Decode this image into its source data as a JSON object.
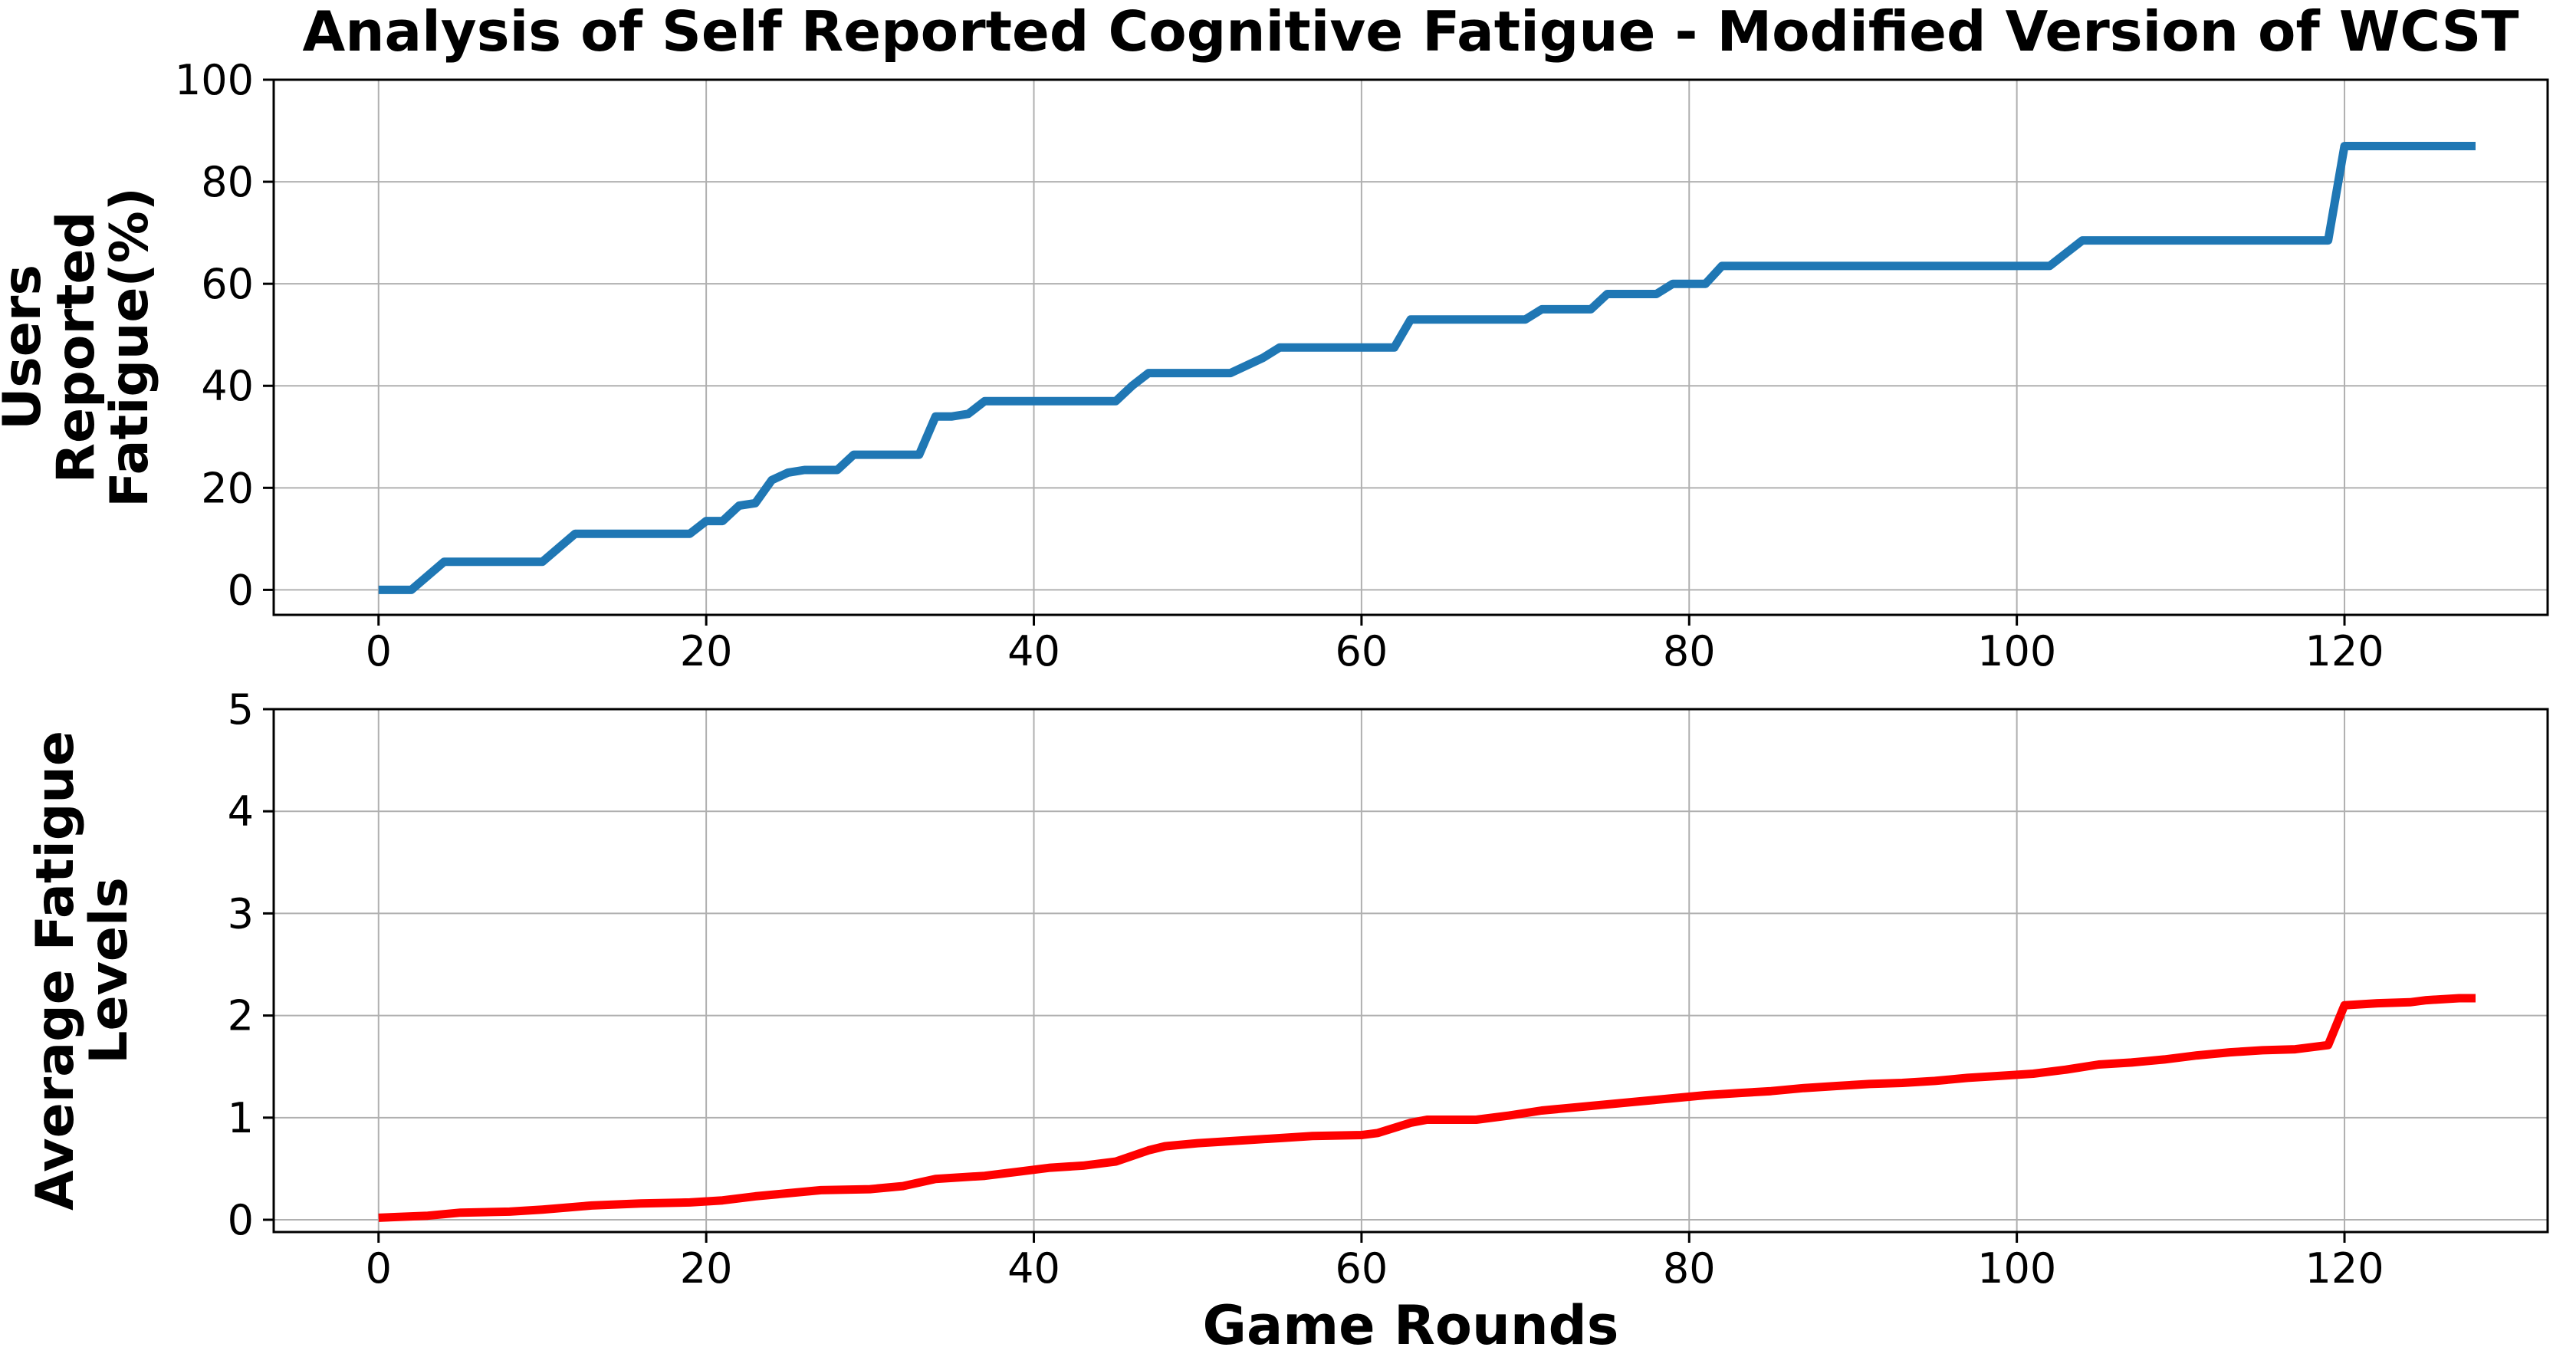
{
  "figure": {
    "title": "Analysis of Self Reported Cognitive Fatigue - Modified Version of WCST",
    "xlabel": "Game Rounds",
    "background": "#ffffff"
  },
  "styles": {
    "grid_color": "#b0b0b0",
    "spine_color": "#000000",
    "text_color": "#000000",
    "blue": "#1f77b4",
    "red": "#ff0000"
  },
  "chart_data": [
    {
      "type": "line",
      "name": "users-reported-fatigue",
      "title": "Analysis of Self Reported Cognitive Fatigue - Modified Version of WCST",
      "ylabel": "Users Reported Fatigue(%)",
      "ylabel_lines": [
        "Users",
        "Reported",
        "Fatigue(%)"
      ],
      "xlabel": "",
      "color": "#1f77b4",
      "line_width": 11,
      "grid": true,
      "legend": "none",
      "xlim": [
        -6.4,
        132.4
      ],
      "ylim": [
        -4.9,
        100
      ],
      "xticks": [
        0,
        20,
        40,
        60,
        80,
        100,
        120
      ],
      "yticks": [
        0,
        20,
        40,
        60,
        80,
        100
      ],
      "points": [
        [
          0,
          0
        ],
        [
          2,
          0
        ],
        [
          4,
          5.5
        ],
        [
          10,
          5.5
        ],
        [
          12,
          11
        ],
        [
          19,
          11
        ],
        [
          20,
          13.5
        ],
        [
          21,
          13.5
        ],
        [
          22,
          16.5
        ],
        [
          23,
          17
        ],
        [
          24,
          21.5
        ],
        [
          25,
          23
        ],
        [
          26,
          23.5
        ],
        [
          28,
          23.5
        ],
        [
          29,
          26.5
        ],
        [
          33,
          26.5
        ],
        [
          34,
          34
        ],
        [
          35,
          34
        ],
        [
          36,
          34.5
        ],
        [
          37,
          37
        ],
        [
          45,
          37
        ],
        [
          46,
          40
        ],
        [
          47,
          42.5
        ],
        [
          52,
          42.5
        ],
        [
          53,
          44
        ],
        [
          54,
          45.5
        ],
        [
          55,
          47.5
        ],
        [
          62,
          47.5
        ],
        [
          63,
          53
        ],
        [
          70,
          53
        ],
        [
          71,
          55
        ],
        [
          74,
          55
        ],
        [
          75,
          58
        ],
        [
          78,
          58
        ],
        [
          79,
          60
        ],
        [
          81,
          60
        ],
        [
          82,
          63.5
        ],
        [
          102,
          63.5
        ],
        [
          103,
          66
        ],
        [
          104,
          68.5
        ],
        [
          119,
          68.5
        ],
        [
          120,
          87
        ],
        [
          128,
          87
        ]
      ]
    },
    {
      "type": "line",
      "name": "average-fatigue-levels",
      "title": "",
      "ylabel": "Average Fatigue Levels",
      "ylabel_lines": [
        "Average Fatigue",
        "Levels"
      ],
      "xlabel": "Game Rounds",
      "color": "#ff0000",
      "line_width": 11,
      "grid": true,
      "legend": "none",
      "xlim": [
        -6.4,
        132.4
      ],
      "ylim": [
        -0.12,
        5
      ],
      "xticks": [
        0,
        20,
        40,
        60,
        80,
        100,
        120
      ],
      "yticks": [
        0,
        1,
        2,
        3,
        4,
        5
      ],
      "points": [
        [
          0,
          0.02
        ],
        [
          3,
          0.04
        ],
        [
          5,
          0.07
        ],
        [
          8,
          0.08
        ],
        [
          10,
          0.1
        ],
        [
          13,
          0.14
        ],
        [
          16,
          0.16
        ],
        [
          19,
          0.17
        ],
        [
          21,
          0.19
        ],
        [
          23,
          0.23
        ],
        [
          25,
          0.26
        ],
        [
          27,
          0.29
        ],
        [
          30,
          0.3
        ],
        [
          32,
          0.33
        ],
        [
          34,
          0.4
        ],
        [
          37,
          0.43
        ],
        [
          39,
          0.47
        ],
        [
          41,
          0.51
        ],
        [
          43,
          0.53
        ],
        [
          45,
          0.57
        ],
        [
          47,
          0.68
        ],
        [
          48,
          0.72
        ],
        [
          50,
          0.75
        ],
        [
          53,
          0.78
        ],
        [
          55,
          0.8
        ],
        [
          57,
          0.82
        ],
        [
          60,
          0.83
        ],
        [
          61,
          0.85
        ],
        [
          62,
          0.9
        ],
        [
          63,
          0.95
        ],
        [
          64,
          0.98
        ],
        [
          67,
          0.98
        ],
        [
          69,
          1.02
        ],
        [
          71,
          1.07
        ],
        [
          73,
          1.1
        ],
        [
          75,
          1.13
        ],
        [
          77,
          1.16
        ],
        [
          79,
          1.19
        ],
        [
          81,
          1.22
        ],
        [
          83,
          1.24
        ],
        [
          85,
          1.26
        ],
        [
          87,
          1.29
        ],
        [
          89,
          1.31
        ],
        [
          91,
          1.33
        ],
        [
          93,
          1.34
        ],
        [
          95,
          1.36
        ],
        [
          97,
          1.39
        ],
        [
          99,
          1.41
        ],
        [
          101,
          1.43
        ],
        [
          103,
          1.47
        ],
        [
          105,
          1.52
        ],
        [
          107,
          1.54
        ],
        [
          109,
          1.57
        ],
        [
          111,
          1.61
        ],
        [
          113,
          1.64
        ],
        [
          115,
          1.66
        ],
        [
          117,
          1.67
        ],
        [
          119,
          1.71
        ],
        [
          120,
          2.1
        ],
        [
          122,
          2.12
        ],
        [
          124,
          2.13
        ],
        [
          125,
          2.15
        ],
        [
          127,
          2.17
        ],
        [
          128,
          2.17
        ]
      ]
    }
  ]
}
